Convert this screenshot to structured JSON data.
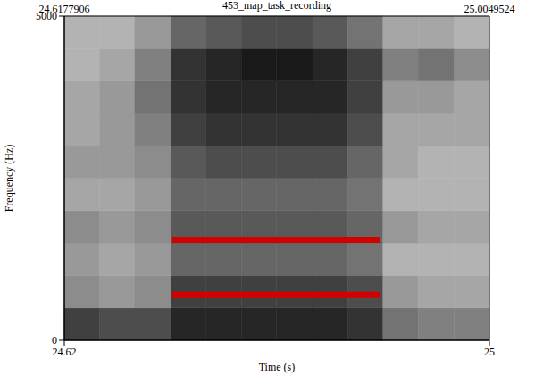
{
  "chart_data": {
    "type": "spectrogram",
    "title": "453_map_task_recording",
    "x_label": "Time (s)",
    "y_label": "Frequency (Hz)",
    "xlim": [
      24.6177906,
      25.0049524
    ],
    "xticks": [
      {
        "value": 24.6177906,
        "label": "24.62"
      },
      {
        "value": 25.0049524,
        "label": "25"
      }
    ],
    "ylim": [
      0,
      5000
    ],
    "yticks": [
      0,
      5000
    ],
    "annotations": [
      {
        "x": 24.6177906,
        "text": "24.6177906"
      },
      {
        "x": 25.0049524,
        "text": "25.0049524"
      }
    ],
    "time_bins": [
      24.6177906,
      24.65,
      24.682,
      24.715,
      24.747,
      24.779,
      24.811,
      24.844,
      24.876,
      24.908,
      24.94,
      24.973,
      25.0049524
    ],
    "freq_bins": [
      0,
      500,
      1000,
      1500,
      2000,
      2500,
      3000,
      3500,
      4000,
      4500,
      5000
    ],
    "cell_range": [
      0,
      1
    ],
    "cells": [
      [
        0.75,
        0.7,
        0.7,
        0.85,
        0.85,
        0.85,
        0.85,
        0.85,
        0.8,
        0.55,
        0.5,
        0.5
      ],
      [
        0.45,
        0.4,
        0.45,
        0.75,
        0.75,
        0.75,
        0.75,
        0.75,
        0.7,
        0.4,
        0.35,
        0.35
      ],
      [
        0.4,
        0.35,
        0.4,
        0.6,
        0.6,
        0.6,
        0.6,
        0.6,
        0.55,
        0.3,
        0.3,
        0.3
      ],
      [
        0.45,
        0.4,
        0.45,
        0.65,
        0.65,
        0.65,
        0.65,
        0.65,
        0.6,
        0.4,
        0.35,
        0.35
      ],
      [
        0.35,
        0.35,
        0.4,
        0.6,
        0.6,
        0.6,
        0.6,
        0.6,
        0.55,
        0.3,
        0.3,
        0.3
      ],
      [
        0.4,
        0.4,
        0.45,
        0.65,
        0.7,
        0.7,
        0.7,
        0.7,
        0.6,
        0.35,
        0.3,
        0.3
      ],
      [
        0.35,
        0.4,
        0.5,
        0.75,
        0.8,
        0.8,
        0.8,
        0.8,
        0.7,
        0.35,
        0.35,
        0.35
      ],
      [
        0.35,
        0.4,
        0.55,
        0.8,
        0.85,
        0.85,
        0.85,
        0.85,
        0.75,
        0.4,
        0.4,
        0.35
      ],
      [
        0.3,
        0.35,
        0.5,
        0.8,
        0.85,
        0.9,
        0.9,
        0.85,
        0.75,
        0.5,
        0.55,
        0.45
      ],
      [
        0.3,
        0.3,
        0.4,
        0.6,
        0.65,
        0.7,
        0.7,
        0.65,
        0.55,
        0.35,
        0.35,
        0.3
      ]
    ],
    "marks": [
      {
        "x": [
          24.716,
          24.905
        ],
        "values": [
          1548,
          1548
        ]
      },
      {
        "x": [
          24.716,
          24.905
        ],
        "values": [
          699,
          699
        ]
      }
    ],
    "color": "#d40000"
  }
}
